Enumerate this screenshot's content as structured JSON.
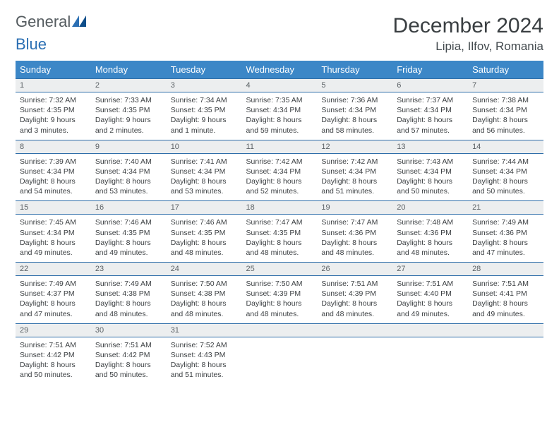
{
  "brand": {
    "part1": "General",
    "part2": "Blue"
  },
  "title": "December 2024",
  "location": "Lipia, Ilfov, Romania",
  "colors": {
    "header_bg": "#3c87c7",
    "header_text": "#ffffff",
    "daynum_bg": "#eceeef",
    "daynum_rule": "#2f6ea9",
    "body_text": "#3b3f42",
    "title_text": "#3a3f42",
    "brand_gray": "#545b5f",
    "brand_blue": "#2b6fb3"
  },
  "weekdays": [
    "Sunday",
    "Monday",
    "Tuesday",
    "Wednesday",
    "Thursday",
    "Friday",
    "Saturday"
  ],
  "days": [
    {
      "n": "1",
      "sr": "7:32 AM",
      "ss": "4:35 PM",
      "dl": "9 hours and 3 minutes."
    },
    {
      "n": "2",
      "sr": "7:33 AM",
      "ss": "4:35 PM",
      "dl": "9 hours and 2 minutes."
    },
    {
      "n": "3",
      "sr": "7:34 AM",
      "ss": "4:35 PM",
      "dl": "9 hours and 1 minute."
    },
    {
      "n": "4",
      "sr": "7:35 AM",
      "ss": "4:34 PM",
      "dl": "8 hours and 59 minutes."
    },
    {
      "n": "5",
      "sr": "7:36 AM",
      "ss": "4:34 PM",
      "dl": "8 hours and 58 minutes."
    },
    {
      "n": "6",
      "sr": "7:37 AM",
      "ss": "4:34 PM",
      "dl": "8 hours and 57 minutes."
    },
    {
      "n": "7",
      "sr": "7:38 AM",
      "ss": "4:34 PM",
      "dl": "8 hours and 56 minutes."
    },
    {
      "n": "8",
      "sr": "7:39 AM",
      "ss": "4:34 PM",
      "dl": "8 hours and 54 minutes."
    },
    {
      "n": "9",
      "sr": "7:40 AM",
      "ss": "4:34 PM",
      "dl": "8 hours and 53 minutes."
    },
    {
      "n": "10",
      "sr": "7:41 AM",
      "ss": "4:34 PM",
      "dl": "8 hours and 53 minutes."
    },
    {
      "n": "11",
      "sr": "7:42 AM",
      "ss": "4:34 PM",
      "dl": "8 hours and 52 minutes."
    },
    {
      "n": "12",
      "sr": "7:42 AM",
      "ss": "4:34 PM",
      "dl": "8 hours and 51 minutes."
    },
    {
      "n": "13",
      "sr": "7:43 AM",
      "ss": "4:34 PM",
      "dl": "8 hours and 50 minutes."
    },
    {
      "n": "14",
      "sr": "7:44 AM",
      "ss": "4:34 PM",
      "dl": "8 hours and 50 minutes."
    },
    {
      "n": "15",
      "sr": "7:45 AM",
      "ss": "4:34 PM",
      "dl": "8 hours and 49 minutes."
    },
    {
      "n": "16",
      "sr": "7:46 AM",
      "ss": "4:35 PM",
      "dl": "8 hours and 49 minutes."
    },
    {
      "n": "17",
      "sr": "7:46 AM",
      "ss": "4:35 PM",
      "dl": "8 hours and 48 minutes."
    },
    {
      "n": "18",
      "sr": "7:47 AM",
      "ss": "4:35 PM",
      "dl": "8 hours and 48 minutes."
    },
    {
      "n": "19",
      "sr": "7:47 AM",
      "ss": "4:36 PM",
      "dl": "8 hours and 48 minutes."
    },
    {
      "n": "20",
      "sr": "7:48 AM",
      "ss": "4:36 PM",
      "dl": "8 hours and 48 minutes."
    },
    {
      "n": "21",
      "sr": "7:49 AM",
      "ss": "4:36 PM",
      "dl": "8 hours and 47 minutes."
    },
    {
      "n": "22",
      "sr": "7:49 AM",
      "ss": "4:37 PM",
      "dl": "8 hours and 47 minutes."
    },
    {
      "n": "23",
      "sr": "7:49 AM",
      "ss": "4:38 PM",
      "dl": "8 hours and 48 minutes."
    },
    {
      "n": "24",
      "sr": "7:50 AM",
      "ss": "4:38 PM",
      "dl": "8 hours and 48 minutes."
    },
    {
      "n": "25",
      "sr": "7:50 AM",
      "ss": "4:39 PM",
      "dl": "8 hours and 48 minutes."
    },
    {
      "n": "26",
      "sr": "7:51 AM",
      "ss": "4:39 PM",
      "dl": "8 hours and 48 minutes."
    },
    {
      "n": "27",
      "sr": "7:51 AM",
      "ss": "4:40 PM",
      "dl": "8 hours and 49 minutes."
    },
    {
      "n": "28",
      "sr": "7:51 AM",
      "ss": "4:41 PM",
      "dl": "8 hours and 49 minutes."
    },
    {
      "n": "29",
      "sr": "7:51 AM",
      "ss": "4:42 PM",
      "dl": "8 hours and 50 minutes."
    },
    {
      "n": "30",
      "sr": "7:51 AM",
      "ss": "4:42 PM",
      "dl": "8 hours and 50 minutes."
    },
    {
      "n": "31",
      "sr": "7:52 AM",
      "ss": "4:43 PM",
      "dl": "8 hours and 51 minutes."
    }
  ],
  "labels": {
    "sunrise": "Sunrise:",
    "sunset": "Sunset:",
    "daylight": "Daylight:"
  },
  "layout": {
    "start_weekday": 0,
    "cols": 7,
    "rows": 5,
    "trailing_empty": 4
  }
}
